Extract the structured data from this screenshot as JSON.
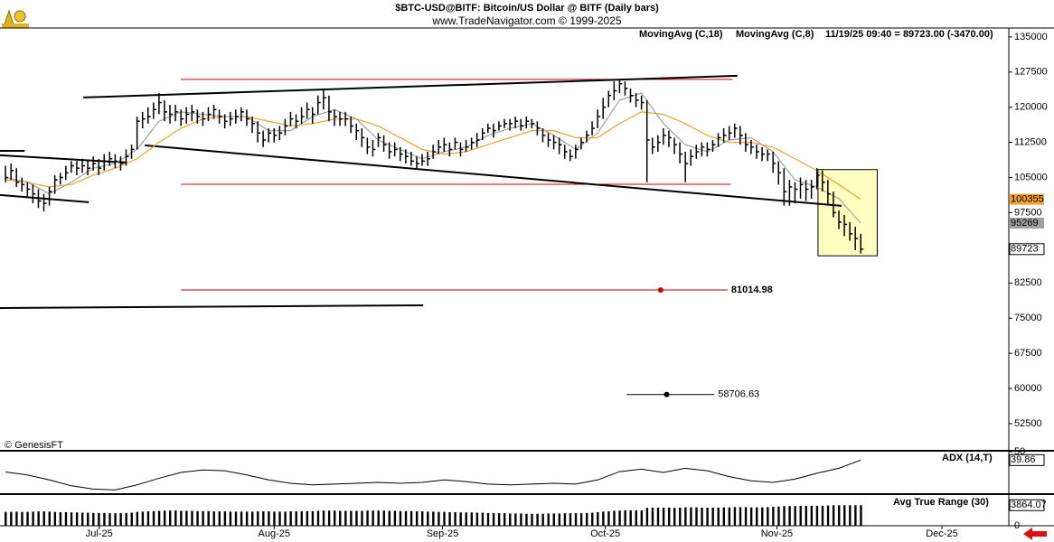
{
  "chart_data": [
    {
      "type": "ohlc",
      "title": "$BTC-USD@BITF:  Bitcoin/US Dollar @ BITF  (Daily bars)",
      "subtitle": "www.TradeNavigator.com © 1999-2025",
      "status": "11/19/25 09:40 = 89723.00 (-3470.00)",
      "watermark": "© GenesisFT",
      "bar_color": "#000000",
      "xlim": [
        -1,
        183
      ],
      "xticks": [
        {
          "value": 17.1,
          "label": "Jul-25"
        },
        {
          "value": 49,
          "label": "Aug-25"
        },
        {
          "value": 79.7,
          "label": "Sep-25"
        },
        {
          "value": 109.4,
          "label": "Oct-25"
        },
        {
          "value": 140.7,
          "label": "Nov-25"
        },
        {
          "value": 170.8,
          "label": "Dec-25"
        }
      ],
      "ylim": [
        46900,
        136900
      ],
      "yticks": [
        135000,
        127500,
        120000,
        112500,
        105000,
        97500,
        90000,
        82500,
        75000,
        67500,
        60000,
        52500
      ],
      "close": [
        105000,
        106500,
        104000,
        103500,
        102500,
        101500,
        100000,
        99500,
        102000,
        104500,
        105000,
        106000,
        107500,
        107000,
        107500,
        107000,
        108000,
        107000,
        108500,
        109000,
        108500,
        108000,
        109500,
        111000,
        117000,
        117500,
        118000,
        119500,
        121000,
        119000,
        118500,
        119000,
        117500,
        118500,
        119000,
        118000,
        117500,
        118500,
        119500,
        118000,
        117000,
        117500,
        118000,
        119000,
        117500,
        116500,
        114500,
        113000,
        114500,
        114000,
        114500,
        116000,
        117500,
        117000,
        118000,
        119500,
        118500,
        121000,
        122000,
        119000,
        118000,
        117500,
        117500,
        116000,
        115000,
        113500,
        111500,
        111000,
        113500,
        112000,
        110500,
        111000,
        110000,
        109500,
        108500,
        108000,
        108500,
        109000,
        110500,
        111500,
        112000,
        111000,
        112500,
        111000,
        111500,
        112500,
        113000,
        114500,
        115500,
        115000,
        116000,
        116500,
        116500,
        117000,
        116000,
        117000,
        116500,
        115500,
        114000,
        113000,
        112500,
        112000,
        110500,
        109500,
        111000,
        112500,
        114000,
        115500,
        118000,
        120000,
        122500,
        123500,
        125000,
        124000,
        122500,
        121500,
        121000,
        113000,
        111500,
        112500,
        114000,
        113500,
        112000,
        110000,
        108000,
        109500,
        110500,
        111500,
        111000,
        112000,
        113500,
        114000,
        114500,
        115500,
        114000,
        112000,
        111500,
        110500,
        110000,
        110000,
        108000,
        106000,
        102000,
        103000,
        102500,
        103500,
        102500,
        103000,
        105500,
        104000,
        101500,
        97500,
        95500,
        95000,
        93000,
        92000,
        89723
      ],
      "high": [
        107500,
        108000,
        107000,
        105000,
        104000,
        103500,
        102500,
        101500,
        103000,
        105500,
        106000,
        107500,
        108500,
        108500,
        109000,
        108500,
        109500,
        109000,
        110000,
        110500,
        110000,
        109500,
        111000,
        112000,
        118000,
        119000,
        120000,
        121000,
        123000,
        121500,
        120500,
        120500,
        119500,
        120000,
        120500,
        119500,
        119000,
        120000,
        120500,
        119500,
        118500,
        119000,
        119500,
        120000,
        119500,
        118000,
        117000,
        115000,
        115500,
        115500,
        116000,
        117500,
        119000,
        118500,
        120000,
        121000,
        120000,
        122500,
        124000,
        122500,
        119500,
        119000,
        119000,
        118000,
        116500,
        115500,
        113500,
        113000,
        114500,
        114000,
        112500,
        112500,
        111500,
        111000,
        110500,
        109500,
        110000,
        110500,
        112000,
        113000,
        113500,
        112500,
        113500,
        112500,
        113000,
        113500,
        114500,
        115500,
        116500,
        116500,
        117000,
        117500,
        117500,
        118000,
        117500,
        118000,
        117500,
        117000,
        115500,
        114500,
        114000,
        113500,
        112000,
        111000,
        112000,
        113500,
        115000,
        117000,
        119500,
        122000,
        123500,
        125500,
        126000,
        125500,
        124000,
        123000,
        122500,
        121500,
        113500,
        114000,
        115500,
        115000,
        113500,
        112500,
        110500,
        111000,
        112000,
        112500,
        112500,
        113000,
        114500,
        115500,
        116000,
        116500,
        116000,
        114500,
        113000,
        112000,
        111500,
        111000,
        110500,
        108500,
        107000,
        104500,
        104000,
        105000,
        104500,
        104500,
        107000,
        106500,
        104500,
        102000,
        98000,
        97000,
        95500,
        94500,
        93000
      ],
      "low": [
        104000,
        104500,
        103000,
        102000,
        101000,
        99500,
        98500,
        97800,
        99000,
        101500,
        103500,
        104500,
        106000,
        105500,
        106000,
        105500,
        106500,
        105500,
        106500,
        107500,
        107000,
        106500,
        107500,
        109000,
        111000,
        115500,
        116500,
        117500,
        118500,
        117000,
        116500,
        117000,
        116000,
        116500,
        117000,
        116500,
        116000,
        117000,
        117500,
        116500,
        115500,
        116000,
        116500,
        117000,
        116000,
        114500,
        112500,
        111500,
        112500,
        112500,
        113000,
        114000,
        116000,
        115500,
        116500,
        117500,
        116500,
        118500,
        119500,
        117000,
        116000,
        116000,
        116000,
        114500,
        113000,
        111500,
        110000,
        109500,
        111500,
        110500,
        109000,
        109500,
        108500,
        108000,
        107500,
        107000,
        107500,
        107500,
        109000,
        110000,
        110500,
        109500,
        111000,
        109500,
        110500,
        111000,
        111500,
        113000,
        114500,
        113500,
        115000,
        115500,
        115000,
        115500,
        115000,
        115500,
        115500,
        114000,
        112500,
        111500,
        111000,
        110000,
        109000,
        108500,
        109000,
        111000,
        112500,
        114000,
        115500,
        117500,
        120000,
        121500,
        123000,
        122500,
        121000,
        120000,
        119500,
        104000,
        110000,
        110500,
        112000,
        111500,
        110000,
        108000,
        104000,
        107500,
        109000,
        109500,
        109500,
        110500,
        111500,
        112500,
        113000,
        113500,
        112000,
        110500,
        110000,
        109000,
        108500,
        108500,
        106000,
        103500,
        99000,
        99000,
        99500,
        100500,
        100000,
        100500,
        102500,
        102000,
        99000,
        96500,
        94000,
        92500,
        91500,
        89500,
        88800
      ],
      "series": [
        {
          "name": "MovingAvg (C,18)",
          "color": "#f0a030",
          "x": [
            0,
            4,
            8,
            12,
            16,
            20,
            24,
            28,
            32,
            36,
            40,
            44,
            48,
            52,
            56,
            60,
            64,
            68,
            72,
            76,
            80,
            84,
            88,
            92,
            96,
            100,
            104,
            108,
            112,
            116,
            120,
            124,
            128,
            132,
            136,
            140,
            144,
            148,
            152,
            156
          ],
          "values": [
            104500,
            104000,
            103000,
            103500,
            105500,
            107000,
            109000,
            112500,
            115500,
            117500,
            118000,
            118000,
            117000,
            116000,
            116500,
            117500,
            117500,
            116000,
            113500,
            111000,
            110000,
            110500,
            112000,
            113500,
            115000,
            115000,
            113500,
            113500,
            116500,
            119000,
            118500,
            116500,
            114000,
            112500,
            112500,
            111500,
            109000,
            106500,
            103500,
            100355
          ]
        },
        {
          "name": "MovingAvg (C,8)",
          "color": "#a0a0a0",
          "x": [
            0,
            4,
            8,
            12,
            16,
            20,
            24,
            28,
            32,
            36,
            40,
            44,
            48,
            52,
            56,
            60,
            64,
            68,
            72,
            76,
            80,
            84,
            88,
            92,
            96,
            100,
            104,
            108,
            112,
            116,
            120,
            124,
            128,
            132,
            136,
            140,
            144,
            148,
            152,
            156
          ],
          "values": [
            105000,
            104000,
            101500,
            104000,
            107000,
            108000,
            111000,
            117000,
            119000,
            118500,
            118000,
            118000,
            115000,
            115000,
            118000,
            119500,
            117500,
            113000,
            111000,
            109000,
            110500,
            111500,
            114000,
            115500,
            116500,
            114000,
            111000,
            114500,
            121500,
            123000,
            116500,
            112000,
            110500,
            113000,
            113500,
            110500,
            104500,
            103000,
            100500,
            95269
          ]
        }
      ],
      "lines": [
        {
          "color": "#000000",
          "x": [
            -1,
            3.5
          ],
          "values": [
            110700,
            110700
          ]
        },
        {
          "color": "#000000",
          "x": [
            -1,
            22.1
          ],
          "values": [
            109750,
            108200
          ]
        },
        {
          "color": "#000000",
          "x": [
            -1,
            15.2
          ],
          "values": [
            101260,
            99720
          ]
        },
        {
          "color": "#000000",
          "x": [
            25.4,
            152.5
          ],
          "values": [
            111860,
            98950
          ]
        },
        {
          "color": "#000000",
          "x": [
            14.2,
            133.5
          ],
          "values": [
            122080,
            126710
          ]
        },
        {
          "color": "#000000",
          "x": [
            -1,
            76.2
          ],
          "values": [
            77160,
            77740
          ]
        }
      ],
      "levels": [
        {
          "value": 125940,
          "color": "#cc0000",
          "x": [
            32,
            132.6
          ]
        },
        {
          "value": 103570,
          "color": "#cc0000",
          "x": [
            32,
            132.3
          ]
        },
        {
          "value": 81014.98,
          "color": "#cc0000",
          "x": [
            32,
            131.7
          ],
          "dot": 119.5
        },
        {
          "value": 58706.63,
          "color": "#000000",
          "x": [
            113.3,
            129.3
          ],
          "dot": 120.6
        }
      ],
      "highlight": {
        "xlim": [
          148.2,
          159
        ],
        "ylim": [
          88300,
          106700
        ],
        "color": "#ffffc0"
      }
    },
    {
      "type": "line",
      "xlim": [
        -1,
        183
      ],
      "ylim": [
        0,
        50
      ],
      "yticks": [
        50
      ],
      "series": [
        {
          "name": "ADX (14,T)",
          "color": "#000000",
          "x": [
            0,
            4,
            8,
            12,
            16,
            20,
            24,
            28,
            32,
            36,
            40,
            44,
            48,
            52,
            56,
            60,
            64,
            68,
            72,
            76,
            80,
            84,
            88,
            92,
            96,
            100,
            104,
            108,
            112,
            116,
            120,
            124,
            128,
            132,
            136,
            140,
            144,
            148,
            152,
            156
          ],
          "values": [
            25.6,
            22,
            16,
            9,
            5,
            4,
            10,
            18,
            25,
            28,
            27,
            22,
            16,
            12,
            10,
            11,
            12,
            13,
            12,
            13,
            16,
            14,
            11,
            10,
            11,
            12,
            11,
            16,
            26,
            29,
            25,
            30,
            27,
            20,
            15,
            13,
            17,
            24,
            30,
            39.86
          ]
        }
      ]
    },
    {
      "type": "bar",
      "xlim": [
        -1,
        183
      ],
      "ylim": [
        0,
        5600
      ],
      "yticks": [
        0
      ],
      "series": [
        {
          "name": "Avg True Range (30)",
          "color": "#000000",
          "values": [
            2600,
            2600,
            2650,
            2600,
            2600,
            2650,
            2700,
            2700,
            2650,
            2600,
            2550,
            2550,
            2500,
            2500,
            2450,
            2450,
            2400,
            2400,
            2400,
            2350,
            2350,
            2350,
            2400,
            2450,
            2600,
            2650,
            2700,
            2750,
            2800,
            2850,
            2850,
            2850,
            2800,
            2800,
            2800,
            2750,
            2750,
            2750,
            2700,
            2700,
            2700,
            2650,
            2650,
            2650,
            2650,
            2650,
            2700,
            2700,
            2700,
            2650,
            2650,
            2650,
            2700,
            2700,
            2700,
            2750,
            2750,
            2800,
            2850,
            2850,
            2850,
            2800,
            2800,
            2800,
            2800,
            2800,
            2850,
            2850,
            2850,
            2850,
            2800,
            2800,
            2750,
            2750,
            2750,
            2700,
            2700,
            2650,
            2650,
            2600,
            2600,
            2550,
            2550,
            2500,
            2500,
            2500,
            2450,
            2450,
            2400,
            2400,
            2350,
            2350,
            2300,
            2300,
            2300,
            2250,
            2250,
            2250,
            2250,
            2300,
            2300,
            2300,
            2350,
            2350,
            2350,
            2350,
            2400,
            2450,
            2550,
            2650,
            2700,
            2800,
            2850,
            2900,
            2900,
            2900,
            2900,
            3350,
            3400,
            3400,
            3400,
            3400,
            3350,
            3400,
            3450,
            3450,
            3450,
            3400,
            3400,
            3400,
            3400,
            3450,
            3450,
            3500,
            3500,
            3500,
            3450,
            3450,
            3450,
            3500,
            3550,
            3600,
            3700,
            3700,
            3700,
            3750,
            3750,
            3750,
            3750,
            3750,
            3800,
            3850,
            3850,
            3850,
            3850,
            3850,
            3864.07
          ]
        }
      ]
    }
  ]
}
